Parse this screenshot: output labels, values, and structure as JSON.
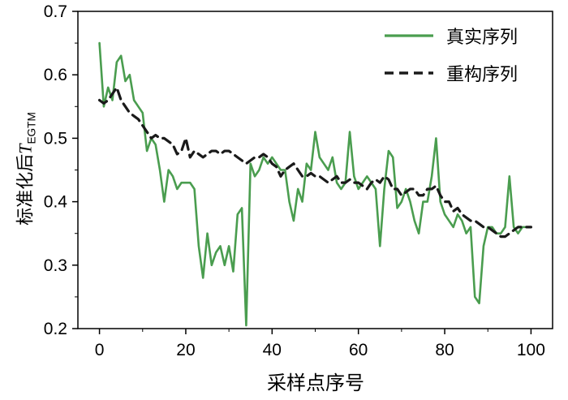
{
  "chart_data": {
    "type": "line",
    "title": "",
    "xlabel": "采样点序号",
    "ylabel": {
      "prefix": "标准化后",
      "symbol": "T",
      "subscript": "EGTM"
    },
    "xlim": [
      -5,
      105
    ],
    "ylim": [
      0.2,
      0.7
    ],
    "x_ticks": [
      0,
      20,
      40,
      60,
      80,
      100
    ],
    "x_minor_ticks": [
      10,
      30,
      50,
      70,
      90
    ],
    "y_ticks": [
      0.2,
      0.3,
      0.4,
      0.5,
      0.6,
      0.7
    ],
    "y_minor_ticks": [
      0.25,
      0.35,
      0.45,
      0.55,
      0.65
    ],
    "grid": false,
    "legend_position": "top-right",
    "x_start": 0,
    "x_step": 1,
    "series": [
      {
        "name": "真实序列",
        "style": "solid",
        "color": "#4a9d4f",
        "values": [
          0.65,
          0.55,
          0.58,
          0.56,
          0.62,
          0.63,
          0.59,
          0.6,
          0.56,
          0.55,
          0.54,
          0.48,
          0.5,
          0.49,
          0.45,
          0.4,
          0.45,
          0.44,
          0.42,
          0.43,
          0.43,
          0.43,
          0.42,
          0.33,
          0.28,
          0.35,
          0.3,
          0.32,
          0.33,
          0.3,
          0.33,
          0.29,
          0.38,
          0.39,
          0.205,
          0.46,
          0.44,
          0.45,
          0.47,
          0.46,
          0.47,
          0.46,
          0.45,
          0.45,
          0.4,
          0.37,
          0.42,
          0.4,
          0.46,
          0.45,
          0.51,
          0.47,
          0.46,
          0.45,
          0.47,
          0.43,
          0.42,
          0.43,
          0.51,
          0.44,
          0.42,
          0.43,
          0.44,
          0.43,
          0.42,
          0.33,
          0.42,
          0.48,
          0.47,
          0.39,
          0.4,
          0.42,
          0.4,
          0.37,
          0.35,
          0.4,
          0.4,
          0.44,
          0.5,
          0.4,
          0.38,
          0.37,
          0.36,
          0.38,
          0.37,
          0.35,
          0.36,
          0.25,
          0.24,
          0.33,
          0.36,
          0.36,
          0.35,
          0.35,
          0.36,
          0.44,
          0.36,
          0.35,
          0.36,
          0.36,
          0.36
        ]
      },
      {
        "name": "重构序列",
        "style": "dashed",
        "color": "#1a1a1a",
        "values": [
          0.56,
          0.555,
          0.56,
          0.57,
          0.58,
          0.56,
          0.55,
          0.54,
          0.535,
          0.53,
          0.52,
          0.51,
          0.5,
          0.505,
          0.5,
          0.5,
          0.495,
          0.49,
          0.475,
          0.48,
          0.5,
          0.47,
          0.48,
          0.475,
          0.47,
          0.475,
          0.48,
          0.48,
          0.475,
          0.48,
          0.48,
          0.475,
          0.47,
          0.465,
          0.46,
          0.465,
          0.47,
          0.47,
          0.475,
          0.47,
          0.46,
          0.455,
          0.44,
          0.45,
          0.455,
          0.46,
          0.45,
          0.44,
          0.44,
          0.445,
          0.44,
          0.44,
          0.435,
          0.43,
          0.435,
          0.44,
          0.43,
          0.43,
          0.435,
          0.43,
          0.43,
          0.425,
          0.42,
          0.43,
          0.435,
          0.43,
          0.44,
          0.435,
          0.42,
          0.42,
          0.41,
          0.415,
          0.42,
          0.42,
          0.41,
          0.41,
          0.42,
          0.42,
          0.425,
          0.41,
          0.4,
          0.4,
          0.385,
          0.39,
          0.38,
          0.375,
          0.37,
          0.37,
          0.365,
          0.36,
          0.36,
          0.355,
          0.35,
          0.345,
          0.345,
          0.35,
          0.355,
          0.36,
          0.36,
          0.36,
          0.36
        ]
      }
    ]
  }
}
